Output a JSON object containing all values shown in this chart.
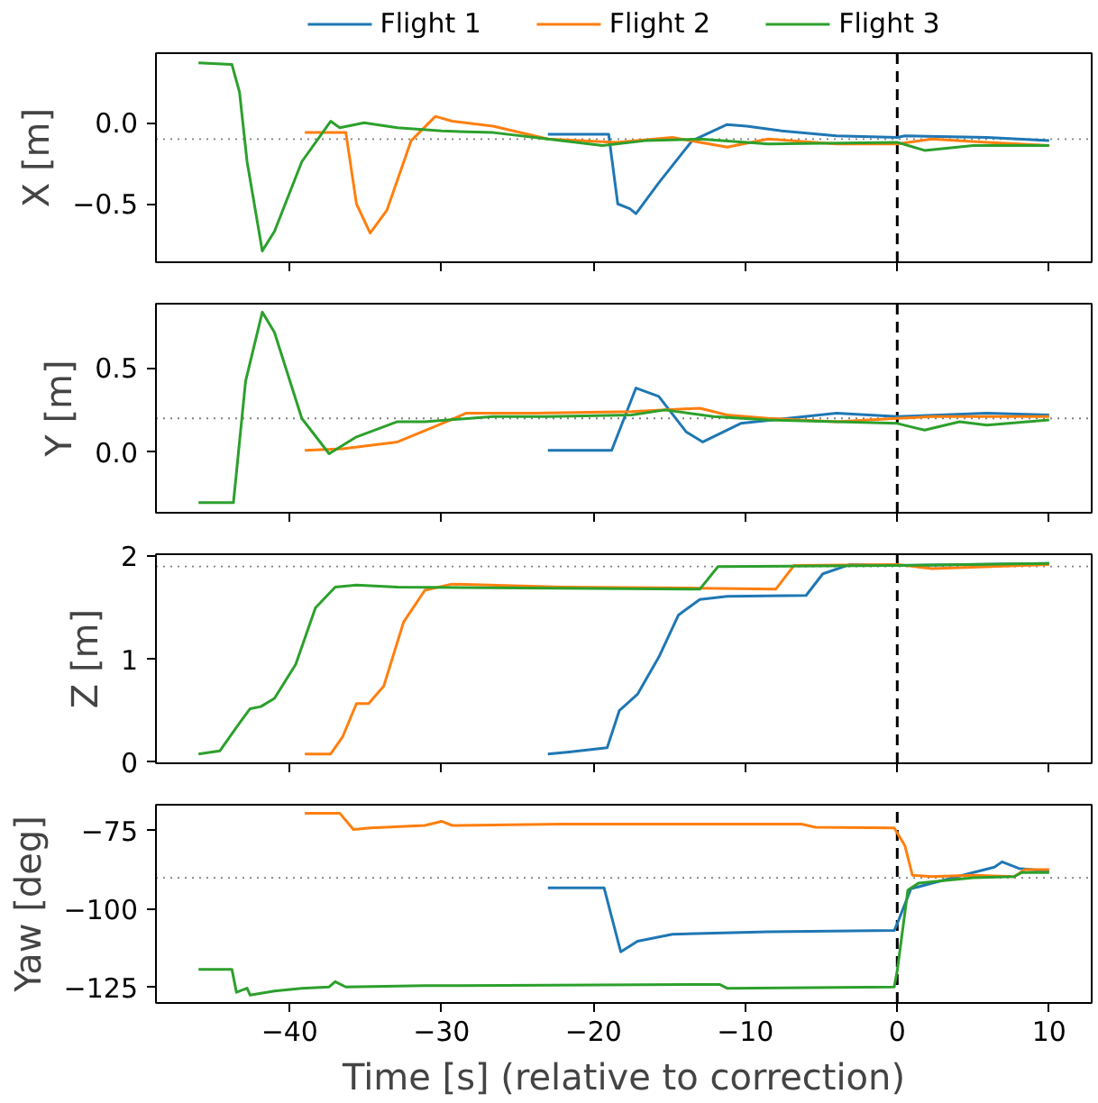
{
  "chart_data": [
    {
      "type": "line",
      "ylabel": "X [m]",
      "legend": "top",
      "tick_labels": "y",
      "xlim": [
        -48.8,
        12.8
      ],
      "ylim": [
        -0.86,
        0.43
      ],
      "xticks": [
        {
          "value": -40,
          "label": null
        },
        {
          "value": -30,
          "label": null
        },
        {
          "value": -20,
          "label": null
        },
        {
          "value": -10,
          "label": null
        },
        {
          "value": 0,
          "label": null
        },
        {
          "value": 10,
          "label": null
        }
      ],
      "yticks": [
        {
          "value": -0.5,
          "label": "−0.5"
        },
        {
          "value": 0,
          "label": "0.0"
        }
      ],
      "ref_lines": [
        {
          "axis": "y",
          "value": -0.1,
          "color": "#808080",
          "line_style": "dotted"
        },
        {
          "axis": "x",
          "value": 0,
          "color": "#000000",
          "line_style": "dashed"
        }
      ],
      "series": [
        {
          "name": "Flight 1",
          "color": "#1f77b4",
          "x": [
            -23,
            -19,
            -18.4,
            -17.6,
            -17.2,
            -15.7,
            -13.5,
            -11.2,
            -9.9,
            -7.6,
            -4,
            0,
            0.5,
            5.9,
            10
          ],
          "values": [
            -0.07,
            -0.07,
            -0.5,
            -0.53,
            -0.56,
            -0.37,
            -0.11,
            -0.01,
            -0.02,
            -0.05,
            -0.08,
            -0.09,
            -0.08,
            -0.09,
            -0.11
          ]
        },
        {
          "name": "Flight 2",
          "color": "#ff7f0e",
          "x": [
            -39,
            -36.3,
            -35.6,
            -34.7,
            -33.6,
            -32,
            -30.4,
            -29.3,
            -26.6,
            -23,
            -18.5,
            -14.8,
            -11.2,
            -8.5,
            -4,
            0,
            2.3,
            5.9,
            10
          ],
          "values": [
            -0.06,
            -0.06,
            -0.5,
            -0.68,
            -0.54,
            -0.11,
            0.04,
            0.01,
            -0.02,
            -0.1,
            -0.12,
            -0.09,
            -0.15,
            -0.1,
            -0.13,
            -0.13,
            -0.1,
            -0.12,
            -0.14
          ]
        },
        {
          "name": "Flight 3",
          "color": "#2ca02c",
          "x": [
            -46,
            -43.8,
            -43.3,
            -42.8,
            -41.8,
            -41,
            -39.2,
            -37.3,
            -36.7,
            -35.1,
            -32.9,
            -30,
            -26.6,
            -23,
            -19.4,
            -16.6,
            -13,
            -8.5,
            0,
            1.8,
            5,
            10
          ],
          "values": [
            0.37,
            0.36,
            0.19,
            -0.24,
            -0.79,
            -0.67,
            -0.24,
            0.01,
            -0.03,
            0,
            -0.03,
            -0.05,
            -0.06,
            -0.1,
            -0.14,
            -0.11,
            -0.1,
            -0.13,
            -0.12,
            -0.17,
            -0.14,
            -0.14
          ]
        }
      ]
    },
    {
      "type": "line",
      "ylabel": "Y [m]",
      "tick_labels": "y",
      "xlim": [
        -48.8,
        12.8
      ],
      "ylim": [
        -0.36,
        0.88
      ],
      "xticks": [
        {
          "value": -40,
          "label": null
        },
        {
          "value": -30,
          "label": null
        },
        {
          "value": -20,
          "label": null
        },
        {
          "value": -10,
          "label": null
        },
        {
          "value": 0,
          "label": null
        },
        {
          "value": 10,
          "label": null
        }
      ],
      "yticks": [
        {
          "value": 0,
          "label": "0.0"
        },
        0.5
      ],
      "ref_lines": [
        {
          "axis": "y",
          "value": 0.2,
          "color": "#808080",
          "line_style": "dotted"
        },
        {
          "axis": "x",
          "value": 0,
          "color": "#000000",
          "line_style": "dashed"
        }
      ],
      "series": [
        {
          "color": "#1f77b4",
          "x": [
            -23,
            -18.8,
            -17.2,
            -15.7,
            -13.9,
            -12.8,
            -10.3,
            -4,
            0,
            5.9,
            10
          ],
          "values": [
            0.01,
            0.01,
            0.38,
            0.33,
            0.12,
            0.06,
            0.17,
            0.23,
            0.21,
            0.23,
            0.22
          ]
        },
        {
          "color": "#ff7f0e",
          "x": [
            -39,
            -36.5,
            -32.9,
            -30.2,
            -28.4,
            -23.9,
            -17.5,
            -13,
            -11.2,
            -8.5,
            -4,
            0,
            2.3,
            10
          ],
          "values": [
            0.01,
            0.02,
            0.06,
            0.16,
            0.23,
            0.23,
            0.24,
            0.26,
            0.22,
            0.2,
            0.18,
            0.2,
            0.21,
            0.21
          ]
        },
        {
          "color": "#2ca02c",
          "x": [
            -46,
            -43.7,
            -42.9,
            -41.8,
            -41,
            -39.2,
            -37.4,
            -35.6,
            -32.9,
            -31.1,
            -26.6,
            -23,
            -17.5,
            -15.3,
            -12.1,
            -8.5,
            0,
            1.8,
            4.1,
            5.9,
            10
          ],
          "values": [
            -0.3,
            -0.3,
            0.42,
            0.83,
            0.71,
            0.2,
            -0.01,
            0.09,
            0.18,
            0.18,
            0.21,
            0.21,
            0.22,
            0.25,
            0.21,
            0.19,
            0.17,
            0.13,
            0.18,
            0.16,
            0.19
          ]
        }
      ]
    },
    {
      "type": "line",
      "ylabel": "Z [m]",
      "tick_labels": "y",
      "xlim": [
        -48.8,
        12.8
      ],
      "ylim": [
        -0.01,
        2.02
      ],
      "xticks": [
        {
          "value": -40,
          "label": null
        },
        {
          "value": -30,
          "label": null
        },
        {
          "value": -20,
          "label": null
        },
        {
          "value": -10,
          "label": null
        },
        {
          "value": 0,
          "label": null
        },
        {
          "value": 10,
          "label": null
        }
      ],
      "yticks": [
        0,
        1,
        2
      ],
      "ref_lines": [
        {
          "axis": "y",
          "value": 1.9,
          "color": "#808080",
          "line_style": "dotted"
        },
        {
          "axis": "x",
          "value": 0,
          "color": "#000000",
          "line_style": "dashed"
        }
      ],
      "series": [
        {
          "color": "#1f77b4",
          "x": [
            -23,
            -21.6,
            -19.1,
            -18.3,
            -17.1,
            -15.7,
            -14.4,
            -13,
            -11.2,
            -6,
            -4.9,
            -3.1,
            0,
            10
          ],
          "values": [
            0.08,
            0.1,
            0.14,
            0.5,
            0.66,
            1.02,
            1.43,
            1.58,
            1.61,
            1.62,
            1.83,
            1.92,
            1.91,
            1.93
          ]
        },
        {
          "color": "#ff7f0e",
          "x": [
            -39,
            -37.3,
            -36.5,
            -35.6,
            -34.8,
            -33.8,
            -32.5,
            -31.1,
            -29.3,
            -22.1,
            -13,
            -8,
            -6.8,
            0,
            2.3,
            10
          ],
          "values": [
            0.08,
            0.08,
            0.25,
            0.57,
            0.57,
            0.74,
            1.36,
            1.67,
            1.73,
            1.7,
            1.69,
            1.68,
            1.91,
            1.92,
            1.88,
            1.92
          ]
        },
        {
          "color": "#2ca02c",
          "x": [
            -46,
            -44.6,
            -43.3,
            -42.6,
            -41.9,
            -41,
            -39.6,
            -38.3,
            -37,
            -35.6,
            -32.9,
            -13,
            -11.8,
            0,
            10
          ],
          "values": [
            0.08,
            0.11,
            0.38,
            0.52,
            0.54,
            0.62,
            0.95,
            1.5,
            1.7,
            1.72,
            1.7,
            1.68,
            1.9,
            1.91,
            1.93
          ]
        }
      ]
    },
    {
      "type": "line",
      "ylabel": "Yaw [deg]",
      "xlabel": "Time [s] (relative to correction)",
      "xlim": [
        -48.8,
        12.8
      ],
      "ylim": [
        -129.9,
        -66.7
      ],
      "xticks": [
        {
          "value": -40,
          "label": "−40"
        },
        {
          "value": -30,
          "label": "−30"
        },
        {
          "value": -20,
          "label": "−20"
        },
        {
          "value": -10,
          "label": "−10"
        },
        0,
        10
      ],
      "yticks": [
        {
          "value": -125,
          "label": "−125"
        },
        {
          "value": -100,
          "label": "−100"
        },
        {
          "value": -75,
          "label": "−75"
        }
      ],
      "ref_lines": [
        {
          "axis": "y",
          "value": -90,
          "color": "#808080",
          "line_style": "dotted"
        },
        {
          "axis": "x",
          "value": 0,
          "color": "#000000",
          "line_style": "dashed"
        }
      ],
      "series": [
        {
          "color": "#1f77b4",
          "x": [
            -23,
            -19.3,
            -18.8,
            -18.2,
            -17.1,
            -14.8,
            -8.5,
            -0.2,
            0,
            0.9,
            2.3,
            5,
            6.4,
            6.9,
            8,
            10
          ],
          "values": [
            -93.2,
            -93.2,
            -102.5,
            -113.6,
            -110.2,
            -108,
            -107.2,
            -106.8,
            -104.6,
            -93.5,
            -91.7,
            -88.3,
            -86.6,
            -84.9,
            -87,
            -87.9
          ]
        },
        {
          "color": "#ff7f0e",
          "x": [
            -39,
            -36.7,
            -35.8,
            -34.7,
            -31.1,
            -30,
            -29.3,
            -22.1,
            -6.3,
            -5.4,
            -0.2,
            0.5,
            1,
            2.3,
            5,
            7.7,
            8.4,
            10
          ],
          "values": [
            -69.4,
            -69.4,
            -74.6,
            -74.1,
            -73.3,
            -72,
            -73.3,
            -72.9,
            -72.9,
            -73.9,
            -74.1,
            -79.7,
            -89.2,
            -89.6,
            -89.2,
            -89.6,
            -87.4,
            -87.4
          ]
        },
        {
          "color": "#2ca02c",
          "x": [
            -46,
            -43.8,
            -43.5,
            -42.8,
            -42.6,
            -41,
            -39.2,
            -37.4,
            -37,
            -36.3,
            -31.1,
            -11.7,
            -11.2,
            -0.2,
            0,
            0.7,
            1.4,
            5,
            7.7,
            8.2,
            10
          ],
          "values": [
            -119.2,
            -119.2,
            -126.5,
            -125.2,
            -127.4,
            -126.1,
            -125.2,
            -124.8,
            -123.1,
            -124.8,
            -124.4,
            -124,
            -125.2,
            -124.8,
            -119.6,
            -93.9,
            -91.7,
            -90,
            -89.6,
            -88.3,
            -88.3
          ]
        }
      ]
    }
  ]
}
